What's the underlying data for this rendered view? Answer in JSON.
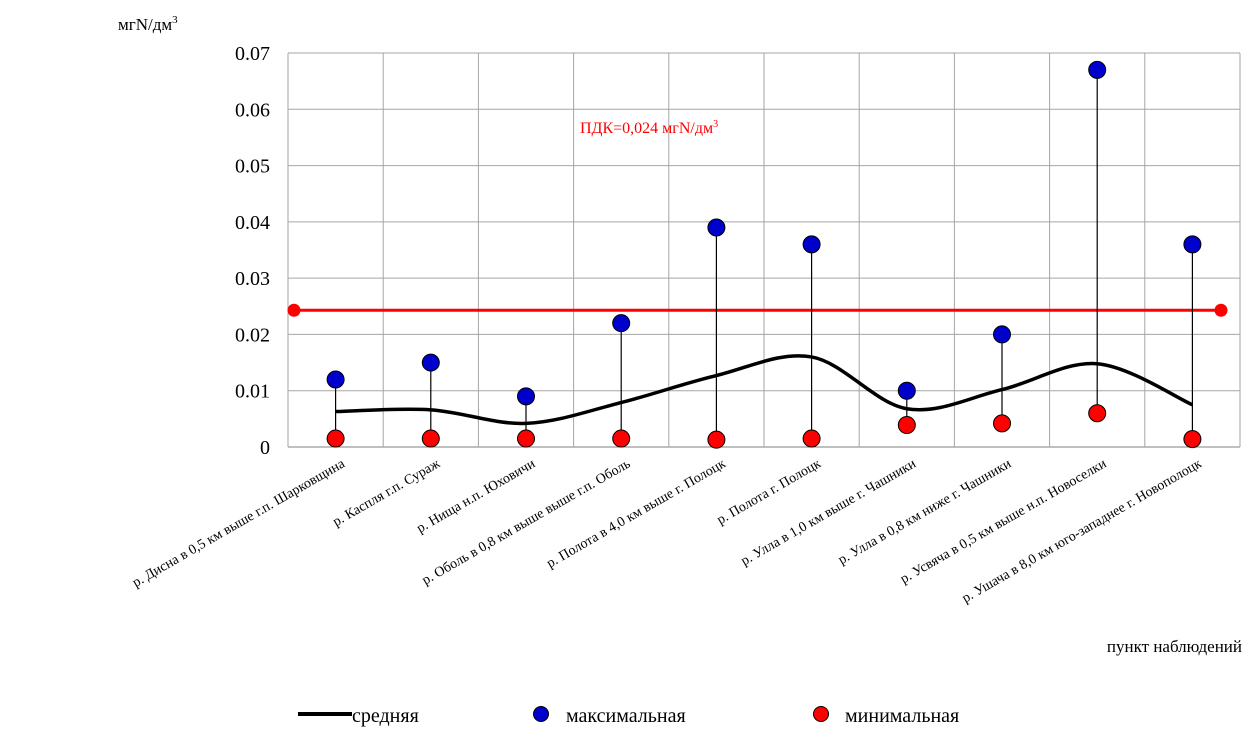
{
  "chart_data": {
    "type": "line",
    "ylabel": "мгN/дм",
    "ylabel_sup": "3",
    "xlabel": "пункт наблюдений",
    "ylim": [
      0,
      0.07
    ],
    "yticks": [
      "0",
      "0.01",
      "0.02",
      "0.03",
      "0.04",
      "0.05",
      "0.06",
      "0.07"
    ],
    "grid": true,
    "categories": [
      "р.  Дисна в 0,5 км выше г.п.  Шарковщина",
      "р. Каспля г.п. Сураж",
      "р. Нища н.п. Юховичи",
      "р. Оболь в 0,8 км выше выше г.п. Оболь",
      "р. Полота в 4,0 км выше г. Полоцк",
      "р. Полота г. Полоцк",
      "р. Улла в 1,0 км выше г. Чашники",
      "р. Улла в 0,8 км ниже г. Чашники",
      "р. Усвяча в 0,5 км выше н.п. Новоселки",
      "р. Ушача в 8,0 км юго-западнее г. Новополоцк"
    ],
    "series": [
      {
        "name": "средняя",
        "color": "#000000",
        "values": [
          0.0063,
          0.0066,
          0.0042,
          0.0079,
          0.0127,
          0.016,
          0.0068,
          0.0102,
          0.0148,
          0.0075
        ]
      },
      {
        "name": "максимальная",
        "color": "#0000cc",
        "values": [
          0.012,
          0.015,
          0.009,
          0.022,
          0.039,
          0.036,
          0.01,
          0.02,
          0.067,
          0.036
        ]
      },
      {
        "name": "минимальная",
        "color": "#ff0000",
        "values": [
          0.0015,
          0.0015,
          0.0015,
          0.0015,
          0.0013,
          0.0015,
          0.0039,
          0.0042,
          0.006,
          0.0014
        ]
      }
    ],
    "threshold": {
      "value": 0.0243,
      "label": "ПДК=0,024 мгN/дм",
      "label_sup": "3",
      "color": "#ff0000"
    },
    "legend_position": "bottom"
  }
}
